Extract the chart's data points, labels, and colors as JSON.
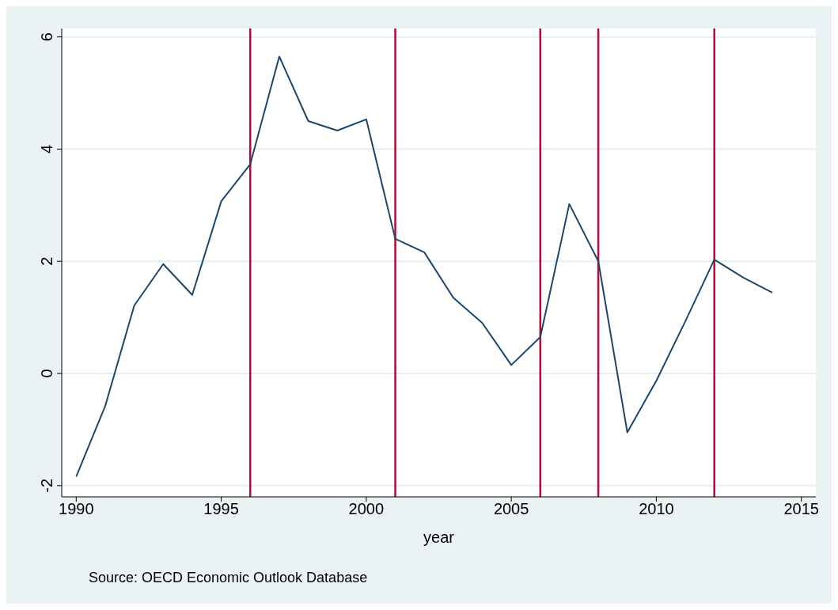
{
  "chart_data": {
    "type": "line",
    "xlabel": "year",
    "x": [
      1990,
      1991,
      1992,
      1993,
      1994,
      1995,
      1996,
      1997,
      1998,
      1999,
      2000,
      2001,
      2002,
      2003,
      2004,
      2005,
      2006,
      2007,
      2008,
      2009,
      2010,
      2011,
      2012,
      2013,
      2014
    ],
    "series": [
      {
        "color": "#1a476f",
        "values": [
          -1.84,
          -0.58,
          1.21,
          1.95,
          1.4,
          3.07,
          3.73,
          5.65,
          4.5,
          4.33,
          4.53,
          2.4,
          2.16,
          1.35,
          0.9,
          0.15,
          0.65,
          3.02,
          2.0,
          -1.05,
          -0.13,
          0.93,
          2.03,
          1.71,
          1.44
        ]
      }
    ],
    "xlim": [
      1989.5,
      2015.5
    ],
    "xticks": [
      1990,
      1995,
      2000,
      2005,
      2010,
      2015
    ],
    "ylim": [
      -2.2,
      6.15
    ],
    "yticks": [
      -2,
      0,
      2,
      4,
      6
    ],
    "grid": "y",
    "marker": "none",
    "line_style": "solid",
    "legend": false,
    "ref_lines": [
      {
        "axis": "x",
        "value": 1996,
        "color": "#c10534"
      },
      {
        "axis": "x",
        "value": 2001,
        "color": "#c10534"
      },
      {
        "axis": "x",
        "value": 2006,
        "color": "#c10534"
      },
      {
        "axis": "x",
        "value": 2008,
        "color": "#c10534"
      },
      {
        "axis": "x",
        "value": 2012,
        "color": "#c10534"
      }
    ],
    "annotations": [
      "Source: OECD Economic Outlook Database"
    ]
  }
}
